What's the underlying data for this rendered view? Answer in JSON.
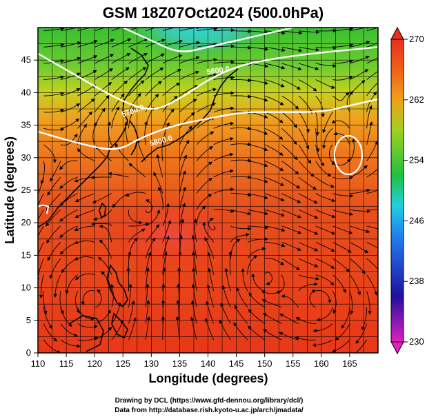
{
  "title": "GSM 18Z07Oct2024 (500.0hPa)",
  "xlabel": "Longitude (degrees)",
  "ylabel": "Latitude  (degrees)",
  "x_ticks": [
    "110",
    "115",
    "120",
    "125",
    "130",
    "135",
    "140",
    "145",
    "150",
    "155",
    "160",
    "165"
  ],
  "y_ticks": [
    "0",
    "5",
    "10",
    "15",
    "20",
    "25",
    "30",
    "35",
    "40",
    "45"
  ],
  "colorbar_ticks": [
    "270",
    "262",
    "254",
    "246",
    "238",
    "230"
  ],
  "credits": {
    "line1": "Drawing by DCL (https://www.gfd-dennou.org/library/dcl/)",
    "line2": "Data from http://database.rish.kyoto-u.ac.jp/arch/jmadata/"
  },
  "contour_labels": [
    "5600.0",
    "5700.0",
    "5800.0"
  ],
  "colors": {
    "warm": "#e23818",
    "mid": "#f08a18",
    "cool": "#40c030",
    "cold": "#30d0c8"
  },
  "chart_data": {
    "type": "heatmap",
    "title": "GSM 18Z07Oct2024 (500.0hPa)",
    "xlabel": "Longitude (degrees)",
    "ylabel": "Latitude  (degrees)",
    "xlim": [
      110,
      170
    ],
    "ylim": [
      0,
      50
    ],
    "colorbar_range": [
      230,
      270
    ],
    "colorbar_ticks": [
      270,
      262,
      254,
      246,
      238,
      230
    ],
    "contours": [
      {
        "label": "5600.0",
        "points": [
          [
            125,
            50
          ],
          [
            130,
            48
          ],
          [
            135,
            46
          ],
          [
            140,
            47
          ],
          [
            145,
            48
          ],
          [
            150,
            49
          ],
          [
            155,
            50
          ]
        ]
      },
      {
        "label": "5700.0",
        "points": [
          [
            110,
            46
          ],
          [
            118,
            42
          ],
          [
            124,
            39
          ],
          [
            130,
            37
          ],
          [
            135,
            39
          ],
          [
            140,
            42
          ],
          [
            145,
            44
          ],
          [
            150,
            45
          ],
          [
            158,
            46
          ],
          [
            170,
            47
          ]
        ]
      },
      {
        "label": "5800.0",
        "points": [
          [
            110,
            34
          ],
          [
            118,
            32
          ],
          [
            124,
            31
          ],
          [
            128,
            33
          ],
          [
            134,
            35
          ],
          [
            140,
            36
          ],
          [
            146,
            37
          ],
          [
            152,
            37
          ],
          [
            160,
            37
          ],
          [
            165,
            38
          ],
          [
            170,
            39
          ]
        ]
      }
    ],
    "grid": true,
    "legend_position": "right"
  }
}
